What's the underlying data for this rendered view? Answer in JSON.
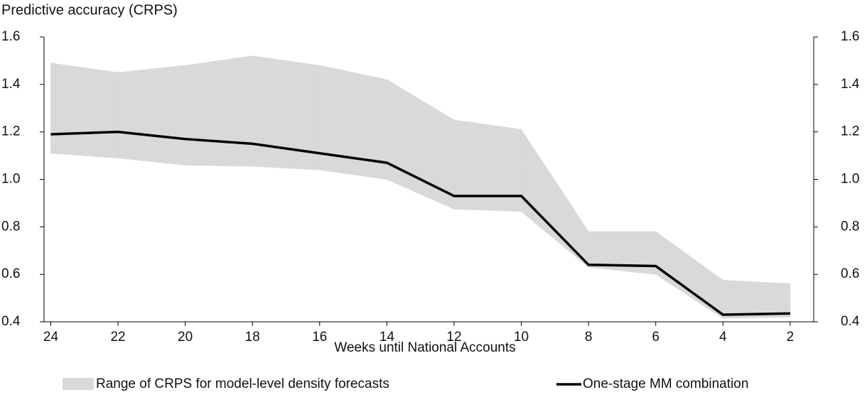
{
  "chart_data": {
    "type": "line",
    "ylabel": "Predictive accuracy (CRPS)",
    "xlabel": "Weeks until National Accounts",
    "x": [
      24,
      22,
      20,
      18,
      16,
      14,
      12,
      10,
      8,
      6,
      4,
      2
    ],
    "xlim": [
      24.2,
      1.3
    ],
    "xticks": [
      24,
      22,
      20,
      18,
      16,
      14,
      12,
      10,
      8,
      6,
      4,
      2
    ],
    "ylim": [
      0.4,
      1.6
    ],
    "yticks": [
      0.4,
      0.6,
      0.8,
      {
        "value": 1.0,
        "label": "1.0"
      },
      1.2,
      1.4,
      1.6
    ],
    "band": {
      "name": "Range of CRPS for model-level density forecasts",
      "color": "#d9d9d9",
      "upper": [
        1.49,
        1.45,
        1.48,
        1.52,
        1.48,
        1.42,
        1.25,
        1.21,
        0.78,
        0.78,
        0.575,
        0.56
      ],
      "lower": [
        1.11,
        1.09,
        1.06,
        1.055,
        1.04,
        1.0,
        0.875,
        0.865,
        0.63,
        0.6,
        0.415,
        0.42
      ]
    },
    "series": [
      {
        "name": "One-stage MM combination",
        "color": "#000000",
        "values": [
          1.19,
          1.2,
          1.17,
          1.15,
          1.11,
          1.07,
          0.93,
          0.93,
          0.64,
          0.635,
          0.43,
          0.435
        ]
      }
    ]
  }
}
